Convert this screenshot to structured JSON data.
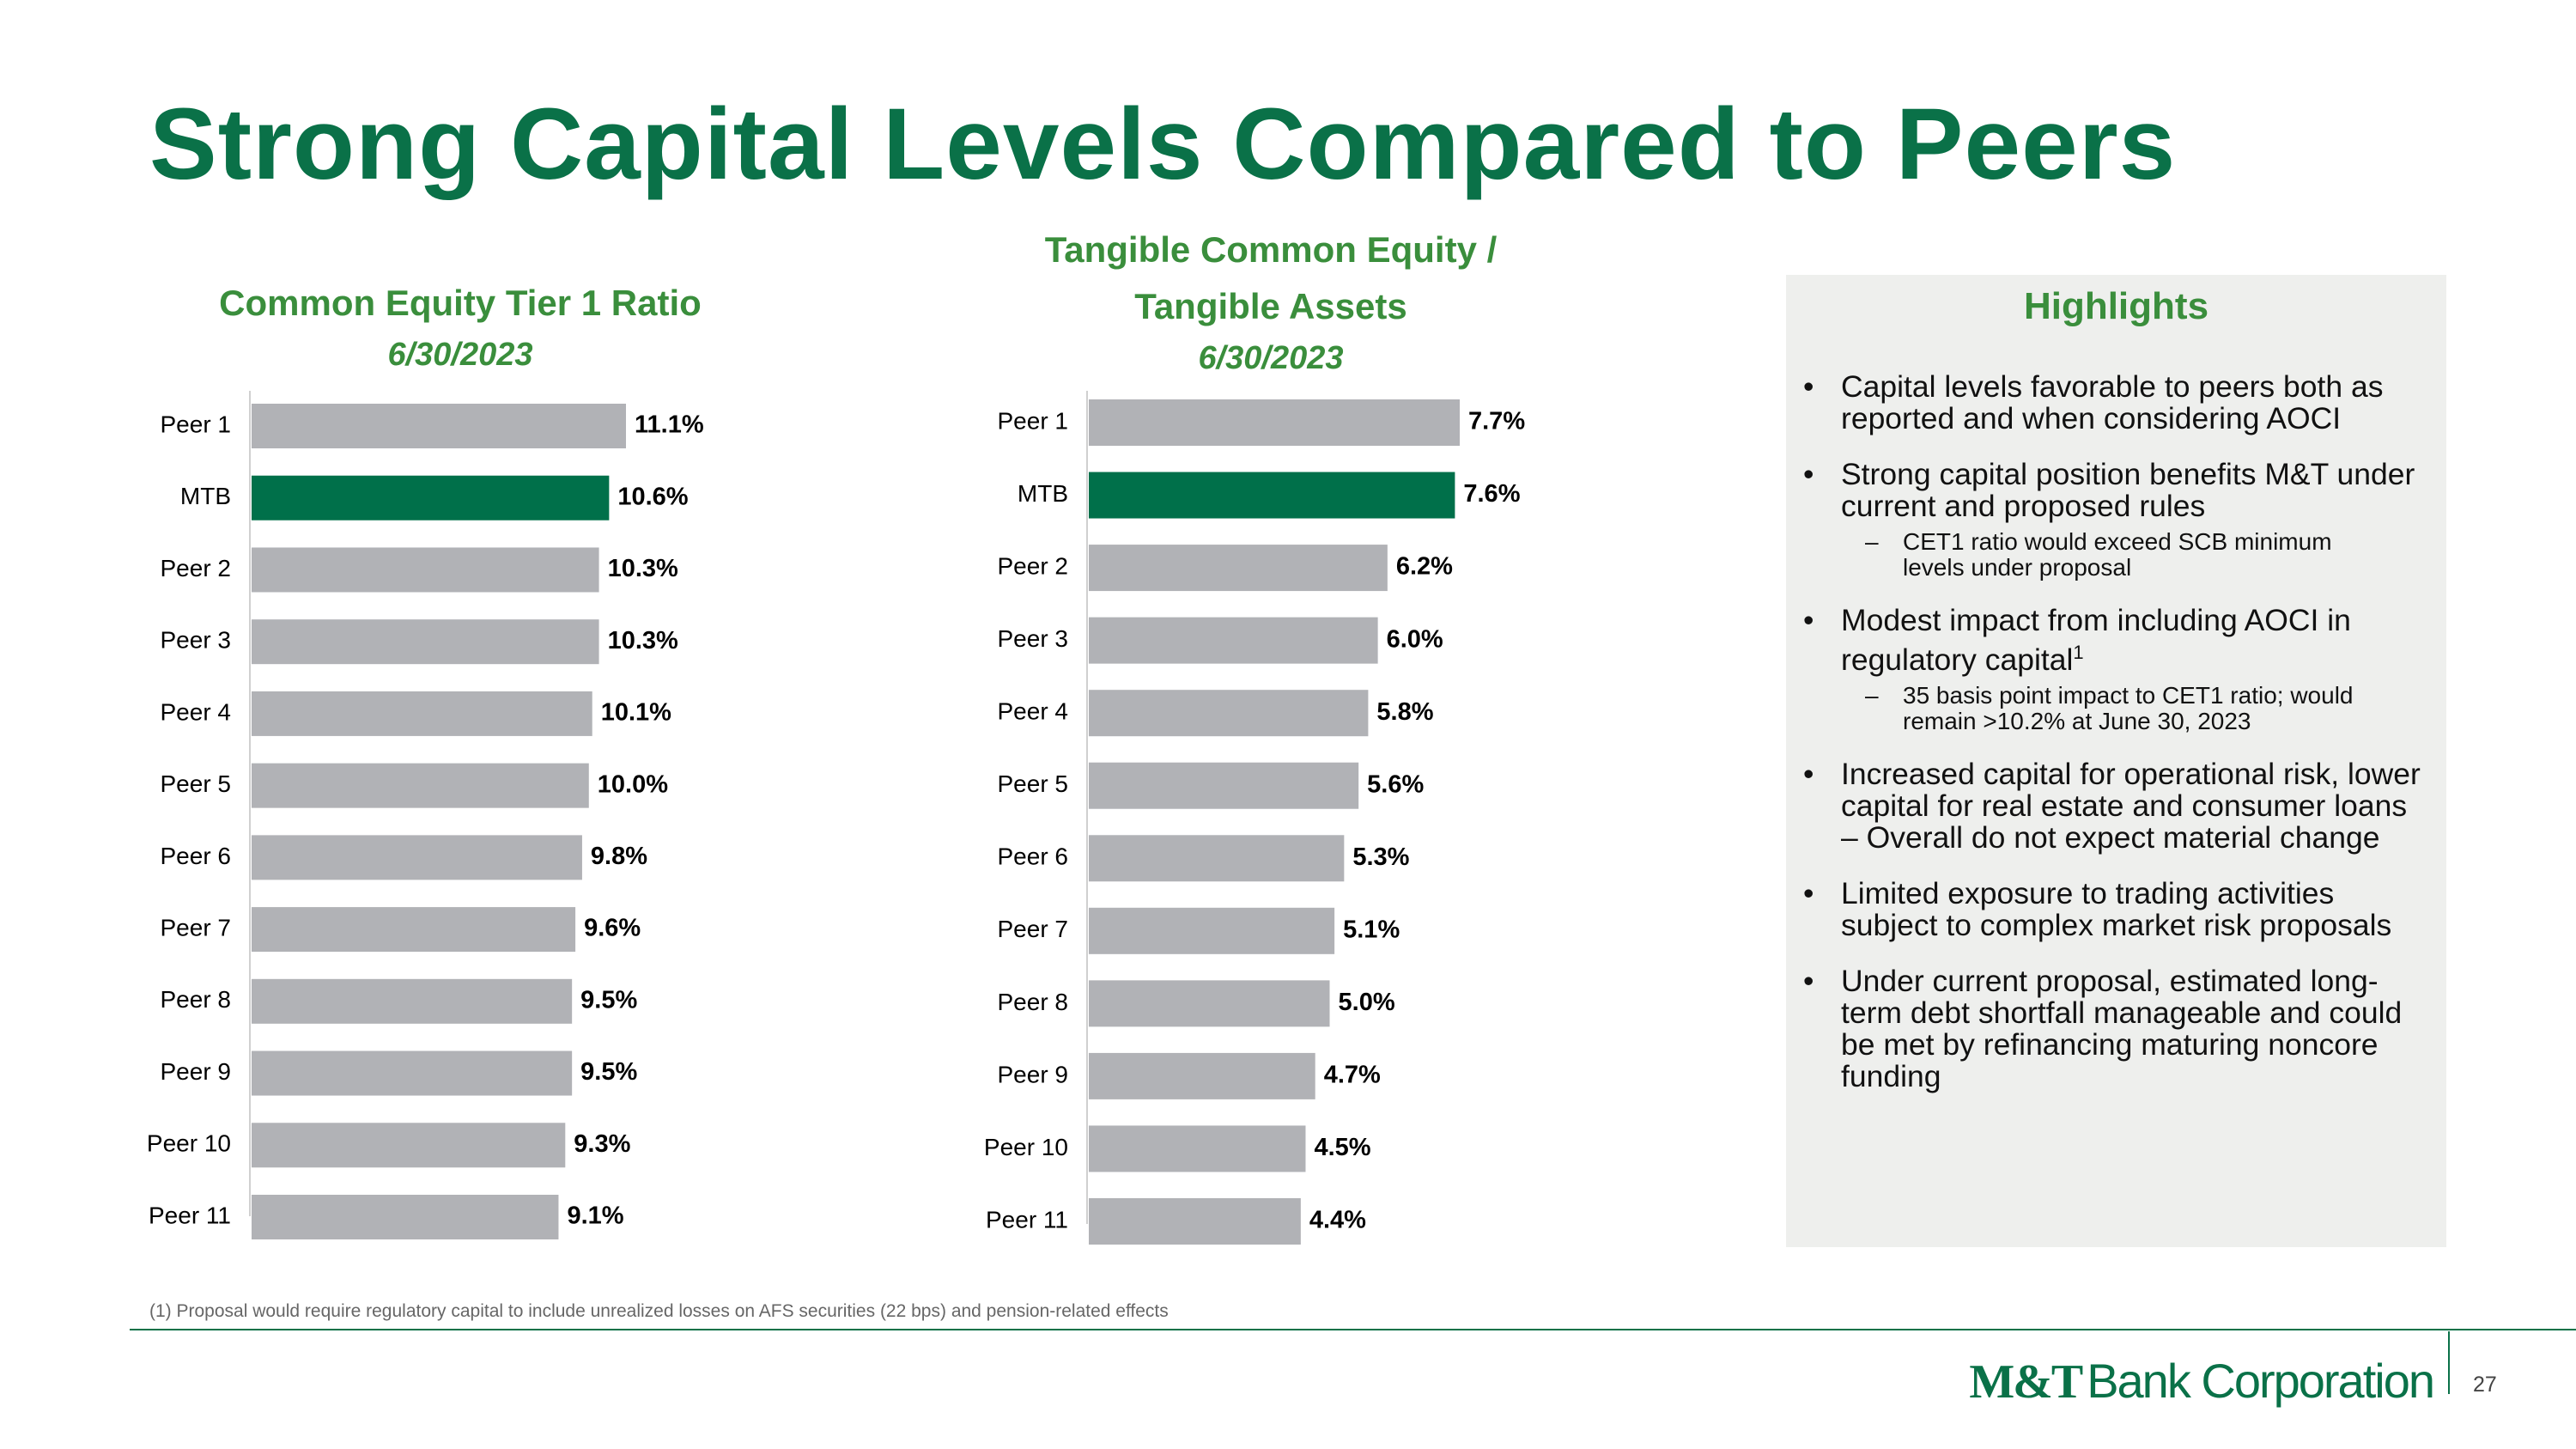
{
  "title": "Strong Capital Levels Compared to Peers",
  "chart_data": [
    {
      "type": "bar",
      "orientation": "horizontal",
      "title": "Common Equity Tier 1 Ratio",
      "subtitle": "6/30/2023",
      "categories": [
        "Peer 1",
        "MTB",
        "Peer 2",
        "Peer 3",
        "Peer 4",
        "Peer 5",
        "Peer 6",
        "Peer 7",
        "Peer 8",
        "Peer 9",
        "Peer 10",
        "Peer 11"
      ],
      "values": [
        11.1,
        10.6,
        10.3,
        10.3,
        10.1,
        10.0,
        9.8,
        9.6,
        9.5,
        9.5,
        9.3,
        9.1
      ],
      "value_labels": [
        "11.1%",
        "10.6%",
        "10.3%",
        "10.3%",
        "10.1%",
        "10.0%",
        "9.8%",
        "9.6%",
        "9.5%",
        "9.5%",
        "9.3%",
        "9.1%"
      ],
      "colors": [
        "#b1b2b6",
        "#00704a",
        "#b1b2b6",
        "#b1b2b6",
        "#b1b2b6",
        "#b1b2b6",
        "#b1b2b6",
        "#b1b2b6",
        "#b1b2b6",
        "#b1b2b6",
        "#b1b2b6",
        "#b1b2b6"
      ]
    },
    {
      "type": "bar",
      "orientation": "horizontal",
      "title": "Tangible Common Equity / Tangible Assets",
      "subtitle": "6/30/2023",
      "categories": [
        "Peer 1",
        "MTB",
        "Peer 2",
        "Peer 3",
        "Peer 4",
        "Peer 5",
        "Peer 6",
        "Peer 7",
        "Peer 8",
        "Peer 9",
        "Peer 10",
        "Peer 11"
      ],
      "values": [
        7.7,
        7.6,
        6.2,
        6.0,
        5.8,
        5.6,
        5.3,
        5.1,
        5.0,
        4.7,
        4.5,
        4.4
      ],
      "value_labels": [
        "7.7%",
        "7.6%",
        "6.2%",
        "6.0%",
        "5.8%",
        "5.6%",
        "5.3%",
        "5.1%",
        "5.0%",
        "4.7%",
        "4.5%",
        "4.4%"
      ],
      "colors": [
        "#b1b2b6",
        "#00704a",
        "#b1b2b6",
        "#b1b2b6",
        "#b1b2b6",
        "#b1b2b6",
        "#b1b2b6",
        "#b1b2b6",
        "#b1b2b6",
        "#b1b2b6",
        "#b1b2b6",
        "#b1b2b6"
      ]
    }
  ],
  "highlights": {
    "title": "Highlights",
    "items": [
      {
        "text": "Capital levels favorable to peers both as reported and when considering AOCI"
      },
      {
        "text": "Strong capital position benefits M&T under current and proposed rules",
        "sub": [
          "CET1 ratio would exceed SCB minimum levels under proposal"
        ]
      },
      {
        "text": "Modest impact from including AOCI in regulatory capital",
        "superscript": "1",
        "sub": [
          "35 basis point impact to CET1 ratio; would remain >10.2% at June 30, 2023"
        ]
      },
      {
        "text": "Increased capital for operational risk, lower capital for real estate and consumer loans – Overall do not expect material change"
      },
      {
        "text": "Limited exposure to trading activities subject to complex market risk proposals"
      },
      {
        "text": "Under current proposal, estimated long-term debt shortfall manageable and could be met by refinancing maturing noncore funding"
      }
    ]
  },
  "footnote": "(1) Proposal would require regulatory capital to include unrealized losses on AFS securities (22 bps) and pension-related effects",
  "logo": {
    "mark": "M&T",
    "name": "Bank Corporation"
  },
  "page_number": "27"
}
